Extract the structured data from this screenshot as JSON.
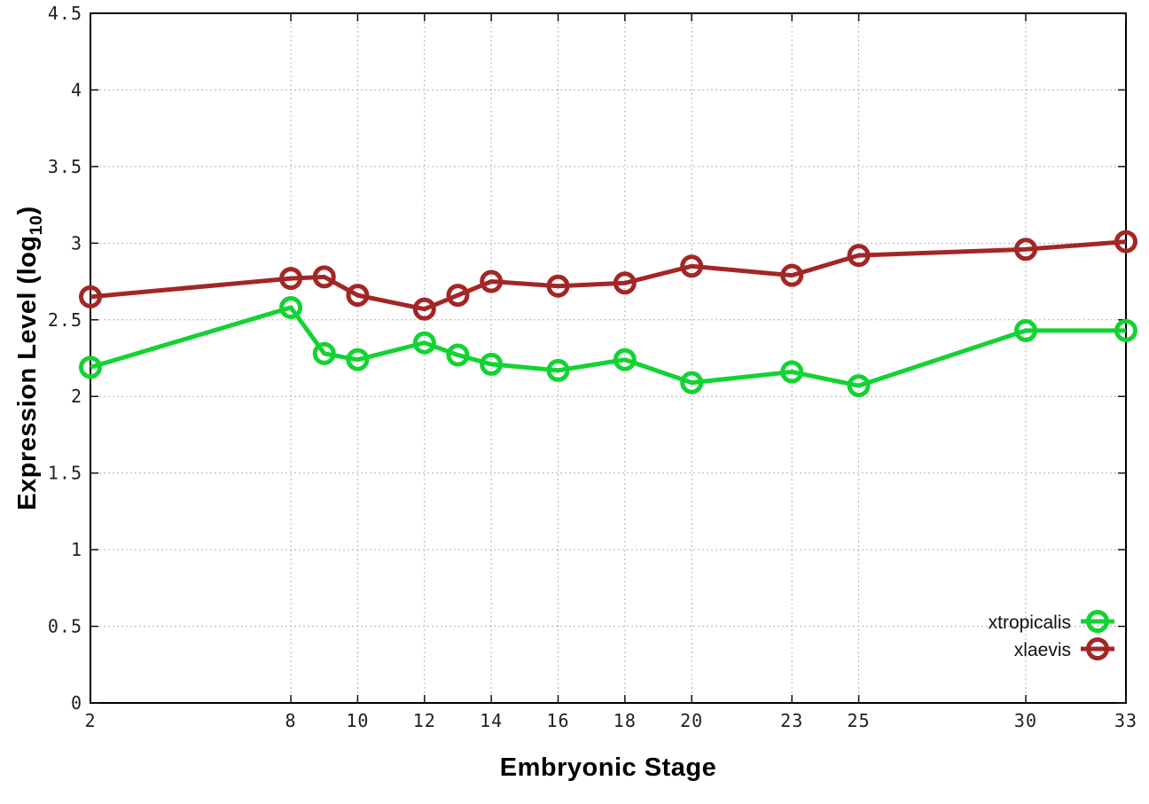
{
  "chart_data": {
    "type": "line",
    "xlabel": "Embryonic Stage",
    "ylabel": "Expression Level (log10)",
    "ylabel_parts": {
      "pre": "Expression Level (log",
      "sub": "10",
      "post": ")"
    },
    "xlim": [
      2,
      33
    ],
    "ylim": [
      0,
      4.5
    ],
    "x_ticks": [
      2,
      8,
      10,
      12,
      14,
      16,
      18,
      20,
      23,
      25,
      30,
      33
    ],
    "y_ticks": [
      0,
      0.5,
      1,
      1.5,
      2,
      2.5,
      3,
      3.5,
      4,
      4.5
    ],
    "grid": true,
    "legend_position": "bottom-right",
    "x": [
      2,
      8,
      9,
      10,
      12,
      13,
      14,
      16,
      18,
      20,
      23,
      25,
      30,
      33
    ],
    "series": [
      {
        "name": "xtropicalis",
        "color": "#12d332",
        "values": [
          2.19,
          2.58,
          2.28,
          2.24,
          2.35,
          2.27,
          2.21,
          2.17,
          2.24,
          2.09,
          2.16,
          2.07,
          2.43,
          2.43
        ]
      },
      {
        "name": "xlaevis",
        "color": "#a32626",
        "values": [
          2.65,
          2.77,
          2.78,
          2.66,
          2.57,
          2.66,
          2.75,
          2.72,
          2.74,
          2.85,
          2.79,
          2.92,
          2.96,
          3.01
        ]
      }
    ],
    "colors": {
      "background": "#ffffff",
      "grid": "#b3b3b3",
      "axis": "#000000"
    }
  }
}
